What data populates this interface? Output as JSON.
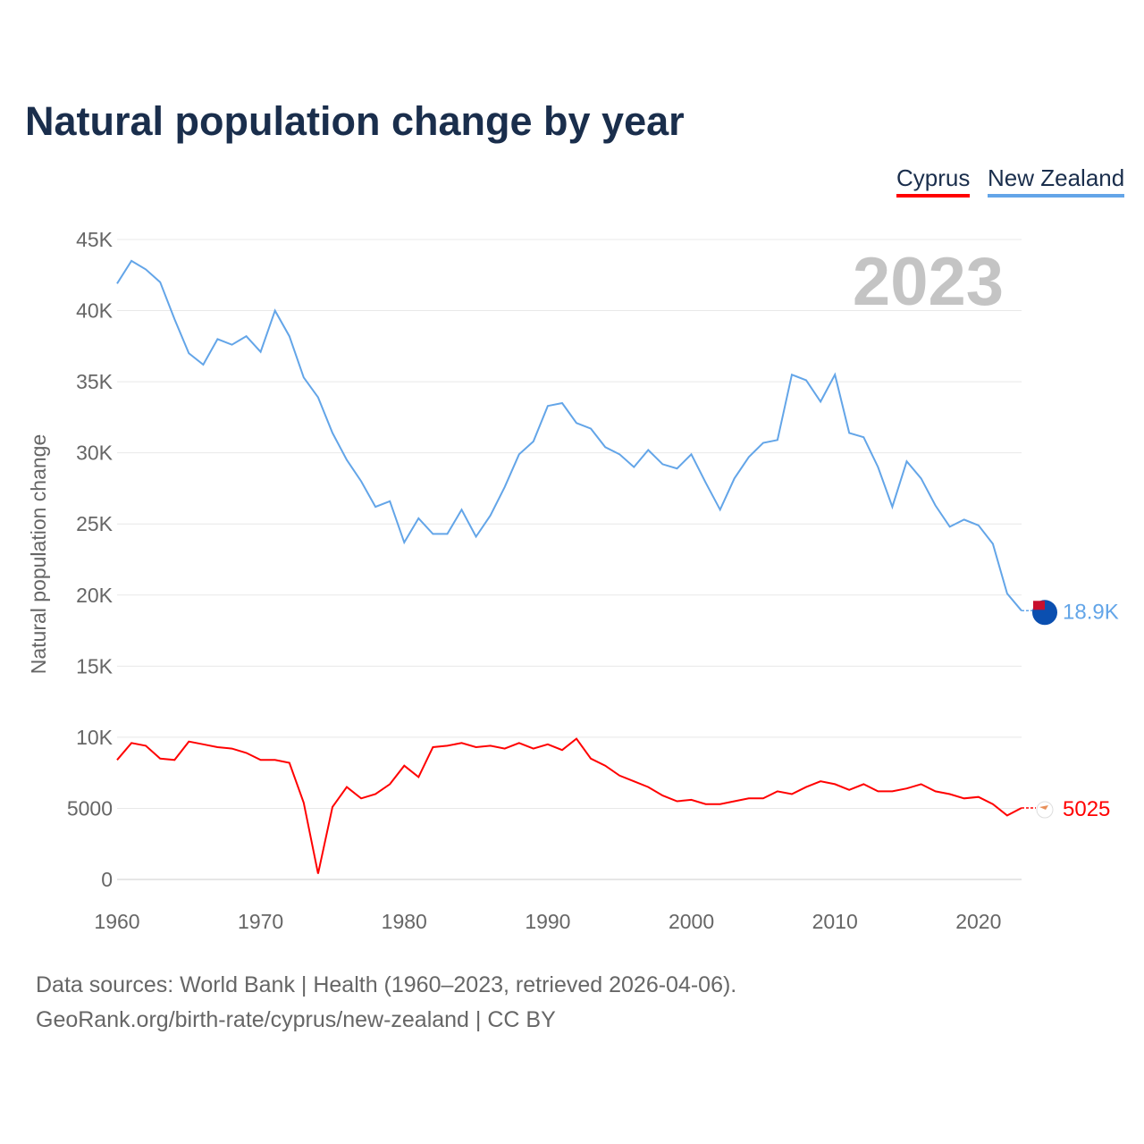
{
  "title": "Natural population change by year",
  "legend": [
    {
      "name": "Cyprus",
      "color": "#ff0000"
    },
    {
      "name": "New Zealand",
      "color": "#63a5e8"
    }
  ],
  "year_watermark": "2023",
  "sources": {
    "line1": "Data sources: World Bank | Health (1960–2023, retrieved 2026-04-06).",
    "line2": "GeoRank.org/birth-rate/cyprus/new-zealand | CC BY"
  },
  "chart_data": {
    "type": "line",
    "title": "Natural population change by year",
    "xlabel": "",
    "ylabel": "Natural population change",
    "xlim": [
      1960,
      2023
    ],
    "ylim": [
      0,
      45000
    ],
    "x_ticks": [
      "1960",
      "1970",
      "1980",
      "1990",
      "2000",
      "2010",
      "2020"
    ],
    "y_ticks": [
      "0",
      "5000",
      "10K",
      "15K",
      "20K",
      "25K",
      "30K",
      "35K",
      "40K",
      "45K"
    ],
    "grid": true,
    "legend_position": "top-right",
    "x_start": 1960,
    "series": [
      {
        "name": "New Zealand",
        "color": "#63a5e8",
        "end_label": "18.9K",
        "values": [
          41900,
          43500,
          42900,
          42000,
          39400,
          37000,
          36200,
          38000,
          37600,
          38200,
          37100,
          40000,
          38200,
          35300,
          33900,
          31400,
          29500,
          28000,
          26200,
          26600,
          23700,
          25400,
          24300,
          24300,
          26000,
          24100,
          25600,
          27600,
          29900,
          30800,
          33300,
          33500,
          32100,
          31700,
          30400,
          29900,
          29000,
          30200,
          29200,
          28900,
          29900,
          27900,
          26000,
          28200,
          29700,
          30700,
          30900,
          35500,
          35100,
          33600,
          35500,
          31400,
          31100,
          29000,
          26200,
          29400,
          28200,
          26300,
          24800,
          25300,
          24900,
          23600,
          20100,
          18900
        ]
      },
      {
        "name": "Cyprus",
        "color": "#ff0000",
        "end_label": "5025",
        "values": [
          8400,
          9600,
          9400,
          8500,
          8400,
          9700,
          9500,
          9300,
          9200,
          8900,
          8400,
          8400,
          8200,
          5400,
          400,
          5100,
          6500,
          5700,
          6000,
          6700,
          8000,
          7200,
          9300,
          9400,
          9600,
          9300,
          9400,
          9200,
          9600,
          9200,
          9500,
          9100,
          9900,
          8500,
          8000,
          7300,
          6900,
          6500,
          5900,
          5500,
          5600,
          5300,
          5300,
          5500,
          5700,
          5700,
          6200,
          6000,
          6500,
          6900,
          6700,
          6300,
          6700,
          6200,
          6200,
          6400,
          6700,
          6200,
          6000,
          5700,
          5800,
          5300,
          4500,
          5025
        ]
      }
    ]
  }
}
